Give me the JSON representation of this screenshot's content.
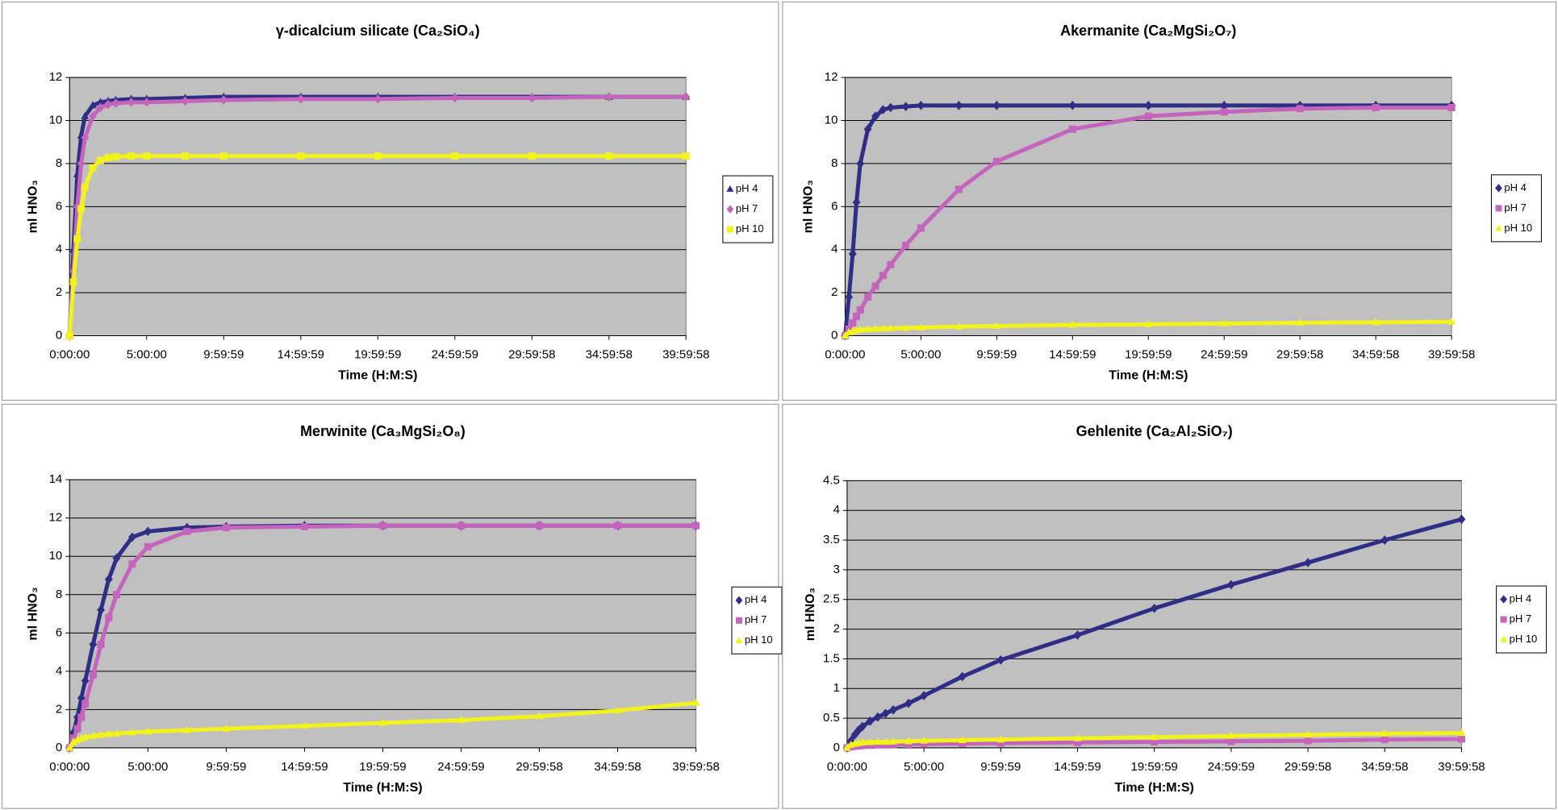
{
  "chart_data": [
    {
      "type": "scatter-line",
      "title": "γ-dicalcium silicate (Ca₂SiO₄)",
      "xlabel": "Time (H:M:S)",
      "ylabel": "ml HNO₃",
      "x": [
        0,
        0.25,
        0.5,
        0.75,
        1,
        1.5,
        2,
        2.5,
        3,
        4,
        5,
        7.5,
        10,
        15,
        20,
        25,
        30,
        35,
        40
      ],
      "xlim": [
        0,
        40
      ],
      "xticks": [
        {
          "value": 0,
          "label": "0:00:00"
        },
        {
          "value": 5,
          "label": "5:00:00"
        },
        {
          "value": 10,
          "label": "9:59:59"
        },
        {
          "value": 15,
          "label": "14:59:59"
        },
        {
          "value": 20,
          "label": "19:59:59"
        },
        {
          "value": 25,
          "label": "24:59:59"
        },
        {
          "value": 30,
          "label": "29:59:58"
        },
        {
          "value": 35,
          "label": "34:59:58"
        },
        {
          "value": 40,
          "label": "39:59:58"
        }
      ],
      "ylim": [
        0,
        12
      ],
      "yticks": [
        0,
        2,
        4,
        6,
        8,
        10,
        12
      ],
      "grid": true,
      "legend": "right",
      "series": [
        {
          "name": "pH 4",
          "color": "#2e2e86",
          "marker": "triangle",
          "values": [
            0,
            4,
            7.5,
            9.3,
            10.2,
            10.7,
            10.85,
            10.9,
            10.95,
            11,
            11,
            11.05,
            11.1,
            11.1,
            11.1,
            11.1,
            11.1,
            11.1,
            11.1
          ]
        },
        {
          "name": "pH 7",
          "color": "#c464bc",
          "marker": "diamond",
          "values": [
            0,
            3,
            6,
            8,
            9.2,
            10.2,
            10.6,
            10.75,
            10.8,
            10.85,
            10.85,
            10.9,
            10.95,
            11,
            11,
            11.05,
            11.05,
            11.1,
            11.1
          ]
        },
        {
          "name": "pH 10",
          "color": "#f2f21c",
          "marker": "square",
          "values": [
            0,
            2.5,
            4.5,
            5.9,
            6.9,
            7.8,
            8.15,
            8.28,
            8.32,
            8.35,
            8.35,
            8.35,
            8.35,
            8.35,
            8.35,
            8.35,
            8.35,
            8.35,
            8.35
          ]
        }
      ]
    },
    {
      "type": "scatter-line",
      "title": "Akermanite (Ca₂MgSi₂O₇)",
      "xlabel": "Time (H:M:S)",
      "ylabel": "ml HNO₃",
      "x": [
        0,
        0.25,
        0.5,
        0.75,
        1,
        1.5,
        2,
        2.5,
        3,
        4,
        5,
        7.5,
        10,
        15,
        20,
        25,
        30,
        35,
        40
      ],
      "xlim": [
        0,
        40
      ],
      "xticks": [
        {
          "value": 0,
          "label": "0:00:00"
        },
        {
          "value": 5,
          "label": "5:00:00"
        },
        {
          "value": 10,
          "label": "9:59:59"
        },
        {
          "value": 15,
          "label": "14:59:59"
        },
        {
          "value": 20,
          "label": "19:59:59"
        },
        {
          "value": 25,
          "label": "24:59:59"
        },
        {
          "value": 30,
          "label": "29:59:58"
        },
        {
          "value": 35,
          "label": "34:59:58"
        },
        {
          "value": 40,
          "label": "39:59:58"
        }
      ],
      "ylim": [
        0,
        12
      ],
      "yticks": [
        0,
        2,
        4,
        6,
        8,
        10,
        12
      ],
      "grid": true,
      "legend": "right",
      "series": [
        {
          "name": "pH 4",
          "color": "#2e2e86",
          "marker": "diamond",
          "values": [
            0,
            1.8,
            3.8,
            6.2,
            8,
            9.6,
            10.2,
            10.5,
            10.6,
            10.65,
            10.7,
            10.7,
            10.7,
            10.7,
            10.7,
            10.7,
            10.7,
            10.7,
            10.7
          ]
        },
        {
          "name": "pH 7",
          "color": "#c464bc",
          "marker": "square",
          "values": [
            0,
            0.3,
            0.6,
            0.9,
            1.2,
            1.8,
            2.3,
            2.8,
            3.3,
            4.2,
            5,
            6.8,
            8.1,
            9.6,
            10.2,
            10.4,
            10.55,
            10.6,
            10.6
          ]
        },
        {
          "name": "pH 10",
          "color": "#f2f21c",
          "marker": "triangle",
          "values": [
            0,
            0.15,
            0.2,
            0.25,
            0.28,
            0.3,
            0.32,
            0.33,
            0.34,
            0.36,
            0.38,
            0.42,
            0.45,
            0.5,
            0.53,
            0.56,
            0.6,
            0.62,
            0.65
          ]
        }
      ]
    },
    {
      "type": "scatter-line",
      "title": "Merwinite (Ca₃MgSi₂O₈)",
      "xlabel": "Time (H:M:S)",
      "ylabel": "ml HNO₃",
      "x": [
        0,
        0.25,
        0.5,
        0.75,
        1,
        1.5,
        2,
        2.5,
        3,
        4,
        5,
        7.5,
        10,
        15,
        20,
        25,
        30,
        35,
        40
      ],
      "xlim": [
        0,
        40
      ],
      "xticks": [
        {
          "value": 0,
          "label": "0:00:00"
        },
        {
          "value": 5,
          "label": "5:00:00"
        },
        {
          "value": 10,
          "label": "9:59:59"
        },
        {
          "value": 15,
          "label": "14:59:59"
        },
        {
          "value": 20,
          "label": "19:59:59"
        },
        {
          "value": 25,
          "label": "24:59:59"
        },
        {
          "value": 30,
          "label": "29:59:58"
        },
        {
          "value": 35,
          "label": "34:59:58"
        },
        {
          "value": 40,
          "label": "39:59:58"
        }
      ],
      "ylim": [
        0,
        14
      ],
      "yticks": [
        0,
        2,
        4,
        6,
        8,
        10,
        12,
        14
      ],
      "grid": true,
      "legend": "right",
      "series": [
        {
          "name": "pH 4",
          "color": "#2e2e86",
          "marker": "diamond",
          "values": [
            0,
            0.8,
            1.6,
            2.6,
            3.5,
            5.4,
            7.2,
            8.8,
            9.9,
            11,
            11.3,
            11.5,
            11.55,
            11.6,
            11.6,
            11.6,
            11.6,
            11.6,
            11.6
          ]
        },
        {
          "name": "pH 7",
          "color": "#c464bc",
          "marker": "square",
          "values": [
            0,
            0.5,
            1,
            1.6,
            2.3,
            3.8,
            5.4,
            6.8,
            8,
            9.6,
            10.5,
            11.3,
            11.5,
            11.55,
            11.6,
            11.6,
            11.6,
            11.6,
            11.6
          ]
        },
        {
          "name": "pH 10",
          "color": "#f2f21c",
          "marker": "triangle",
          "values": [
            0,
            0.3,
            0.4,
            0.5,
            0.55,
            0.62,
            0.68,
            0.72,
            0.75,
            0.8,
            0.85,
            0.92,
            1,
            1.15,
            1.3,
            1.45,
            1.65,
            1.95,
            2.35
          ]
        }
      ]
    },
    {
      "type": "scatter-line",
      "title": "Gehlenite (Ca₂Al₂SiO₇)",
      "xlabel": "Time (H:M:S)",
      "ylabel": "ml HNO₃",
      "x": [
        0,
        0.25,
        0.5,
        0.75,
        1,
        1.5,
        2,
        2.5,
        3,
        4,
        5,
        7.5,
        10,
        15,
        20,
        25,
        30,
        35,
        40
      ],
      "xlim": [
        0,
        40
      ],
      "xticks": [
        {
          "value": 0,
          "label": "0:00:00"
        },
        {
          "value": 5,
          "label": "5:00:00"
        },
        {
          "value": 10,
          "label": "9:59:59"
        },
        {
          "value": 15,
          "label": "14:59:59"
        },
        {
          "value": 20,
          "label": "19:59:59"
        },
        {
          "value": 25,
          "label": "24:59:59"
        },
        {
          "value": 30,
          "label": "29:59:58"
        },
        {
          "value": 35,
          "label": "34:59:58"
        },
        {
          "value": 40,
          "label": "39:59:58"
        }
      ],
      "ylim": [
        0,
        4.5
      ],
      "yticks": [
        0,
        0.5,
        1,
        1.5,
        2,
        2.5,
        3,
        3.5,
        4,
        4.5
      ],
      "grid": true,
      "legend": "right",
      "series": [
        {
          "name": "pH 4",
          "color": "#2e2e86",
          "marker": "diamond",
          "values": [
            0,
            0.12,
            0.22,
            0.3,
            0.36,
            0.45,
            0.52,
            0.58,
            0.64,
            0.75,
            0.88,
            1.2,
            1.48,
            1.9,
            2.35,
            2.75,
            3.12,
            3.5,
            3.85
          ]
        },
        {
          "name": "pH 7",
          "color": "#c464bc",
          "marker": "square",
          "values": [
            0,
            0.02,
            0.03,
            0.035,
            0.04,
            0.045,
            0.05,
            0.05,
            0.055,
            0.06,
            0.065,
            0.07,
            0.08,
            0.09,
            0.1,
            0.11,
            0.12,
            0.14,
            0.15
          ]
        },
        {
          "name": "pH 10",
          "color": "#f2f21c",
          "marker": "triangle",
          "values": [
            0,
            0.05,
            0.07,
            0.08,
            0.09,
            0.095,
            0.1,
            0.1,
            0.105,
            0.11,
            0.12,
            0.13,
            0.14,
            0.16,
            0.18,
            0.2,
            0.22,
            0.24,
            0.25
          ]
        }
      ]
    }
  ]
}
